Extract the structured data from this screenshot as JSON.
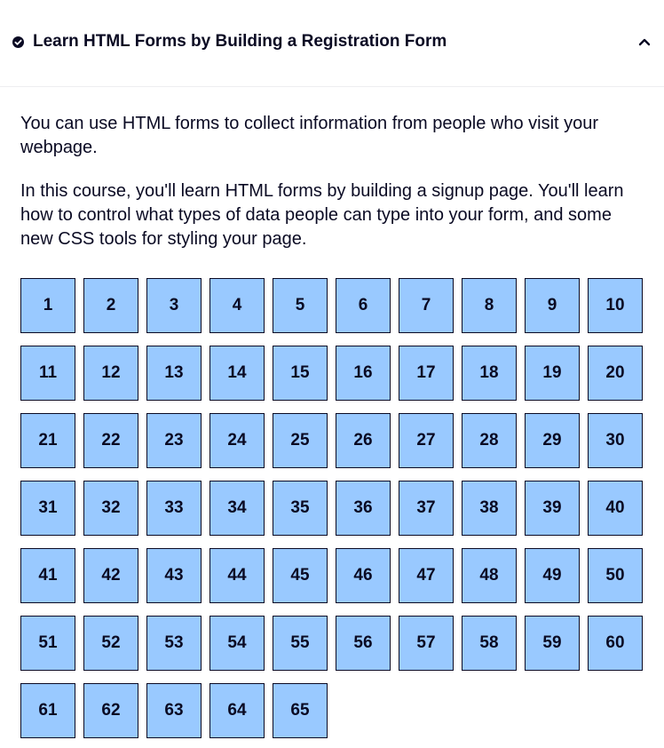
{
  "header": {
    "title": "Learn HTML Forms by Building a Registration Form",
    "status_icon": "check-circle-icon",
    "toggle_icon": "chevron-up-icon"
  },
  "description": {
    "paragraph_1": "You can use HTML forms to collect information from people who visit your webpage.",
    "paragraph_2": "In this course, you'll learn HTML forms by building a signup page. You'll learn how to control what types of data people can type into your form, and some new CSS tools for styling your page."
  },
  "steps": [
    "1",
    "2",
    "3",
    "4",
    "5",
    "6",
    "7",
    "8",
    "9",
    "10",
    "11",
    "12",
    "13",
    "14",
    "15",
    "16",
    "17",
    "18",
    "19",
    "20",
    "21",
    "22",
    "23",
    "24",
    "25",
    "26",
    "27",
    "28",
    "29",
    "30",
    "31",
    "32",
    "33",
    "34",
    "35",
    "36",
    "37",
    "38",
    "39",
    "40",
    "41",
    "42",
    "43",
    "44",
    "45",
    "46",
    "47",
    "48",
    "49",
    "50",
    "51",
    "52",
    "53",
    "54",
    "55",
    "56",
    "57",
    "58",
    "59",
    "60",
    "61",
    "62",
    "63",
    "64",
    "65"
  ],
  "colors": {
    "step_background": "#99c9ff",
    "step_border": "#0a0a23",
    "text": "#0a0a23"
  }
}
